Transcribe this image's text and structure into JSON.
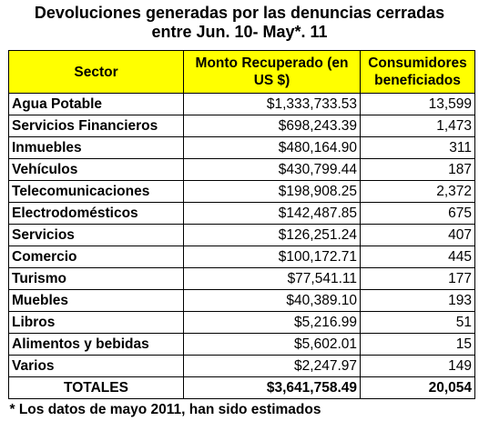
{
  "chart_data": {
    "type": "table",
    "title": "Devoluciones generadas por las denuncias cerradas entre Jun. 10- May*. 11",
    "title_lines": [
      "Devoluciones generadas por las denuncias cerradas",
      "entre Jun. 10- May*. 11"
    ],
    "columns": [
      "Sector",
      "Monto Recuperado (en US $)",
      "Consumidores beneficiados"
    ],
    "rows": [
      {
        "sector": "Agua Potable",
        "monto": "$1,333,733.53",
        "consumidores": "13,599"
      },
      {
        "sector": "Servicios Financieros",
        "monto": "$698,243.39",
        "consumidores": "1,473"
      },
      {
        "sector": "Inmuebles",
        "monto": "$480,164.90",
        "consumidores": "311"
      },
      {
        "sector": "Vehículos",
        "monto": "$430,799.44",
        "consumidores": "187"
      },
      {
        "sector": "Telecomunicaciones",
        "monto": "$198,908.25",
        "consumidores": "2,372"
      },
      {
        "sector": "Electrodomésticos",
        "monto": "$142,487.85",
        "consumidores": "675"
      },
      {
        "sector": "Servicios",
        "monto": "$126,251.24",
        "consumidores": "407"
      },
      {
        "sector": "Comercio",
        "monto": "$100,172.71",
        "consumidores": "445"
      },
      {
        "sector": "Turismo",
        "monto": "$77,541.11",
        "consumidores": "177"
      },
      {
        "sector": "Muebles",
        "monto": "$40,389.10",
        "consumidores": "193"
      },
      {
        "sector": "Libros",
        "monto": "$5,216.99",
        "consumidores": "51"
      },
      {
        "sector": "Alimentos y bebidas",
        "monto": "$5,602.01",
        "consumidores": "15"
      },
      {
        "sector": "Varios",
        "monto": "$2,247.97",
        "consumidores": "149"
      }
    ],
    "totals": {
      "label": "TOTALES",
      "monto": "$3,641,758.49",
      "consumidores": "20,054"
    },
    "footnote": "* Los datos de mayo 2011, han sido estimados",
    "header_color": "#ffff00"
  }
}
